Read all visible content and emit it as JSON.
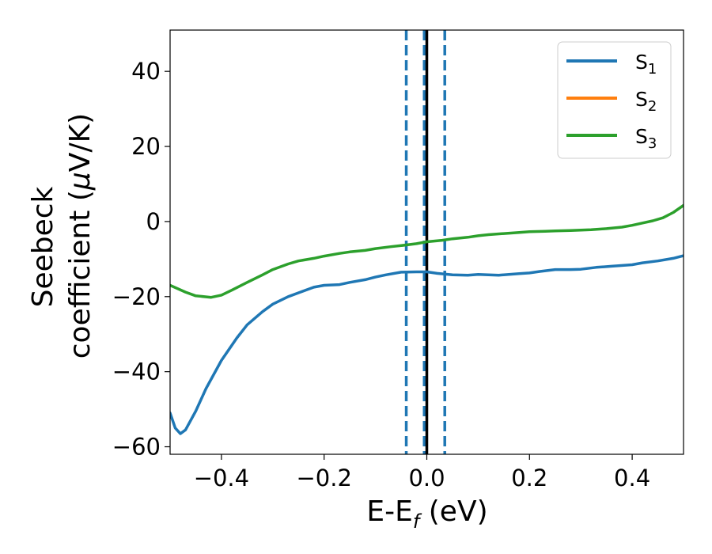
{
  "chart_data": {
    "type": "line",
    "xlabel": {
      "main": "E-E",
      "sub": "f",
      "unit": " (eV)"
    },
    "ylabel": {
      "line1": "Seebeck",
      "line2": "coefficient  (",
      "mu": "μ",
      "unit": "V/K)"
    },
    "xlim": [
      -0.5,
      0.5
    ],
    "ylim": [
      -62,
      51
    ],
    "xticks": [
      -0.4,
      -0.2,
      0.0,
      0.2,
      0.4
    ],
    "xtick_labels": [
      "−0.4",
      "−0.2",
      "0.0",
      "0.2",
      "0.4"
    ],
    "yticks": [
      -60,
      -40,
      -20,
      0,
      20,
      40
    ],
    "ytick_labels": [
      "−60",
      "−40",
      "−20",
      "0",
      "20",
      "40"
    ],
    "grid": false,
    "legend": "top-right",
    "vlines": [
      {
        "x": -0.04,
        "style": "dashed",
        "color": "#1f77b4"
      },
      {
        "x": -0.005,
        "style": "dashed",
        "color": "#1f77b4"
      },
      {
        "x": 0.0,
        "style": "solid",
        "color": "#000000"
      },
      {
        "x": 0.035,
        "style": "dashed",
        "color": "#1f77b4"
      }
    ],
    "series": [
      {
        "name": {
          "base": "S",
          "sub": "1"
        },
        "color": "#1f77b4",
        "x": [
          -0.5,
          -0.49,
          -0.48,
          -0.47,
          -0.45,
          -0.43,
          -0.4,
          -0.37,
          -0.35,
          -0.32,
          -0.3,
          -0.27,
          -0.25,
          -0.22,
          -0.2,
          -0.17,
          -0.15,
          -0.12,
          -0.1,
          -0.08,
          -0.05,
          -0.02,
          0.0,
          0.02,
          0.05,
          0.08,
          0.1,
          0.14,
          0.18,
          0.2,
          0.22,
          0.25,
          0.28,
          0.3,
          0.33,
          0.36,
          0.4,
          0.42,
          0.45,
          0.48,
          0.5
        ],
        "values": [
          -51,
          -55,
          -56.5,
          -55.5,
          -50.5,
          -44.5,
          -37,
          -31,
          -27.5,
          -24,
          -22,
          -20,
          -19,
          -17.5,
          -17,
          -16.8,
          -16.2,
          -15.5,
          -14.8,
          -14.2,
          -13.5,
          -13.4,
          -13.4,
          -13.8,
          -14.2,
          -14.3,
          -14.1,
          -14.3,
          -13.9,
          -13.7,
          -13.3,
          -12.8,
          -12.8,
          -12.7,
          -12.2,
          -11.9,
          -11.5,
          -11,
          -10.5,
          -9.8,
          -9.1
        ]
      },
      {
        "name": {
          "base": "S",
          "sub": "2"
        },
        "color": "#ff7f0e",
        "x": [],
        "values": []
      },
      {
        "name": {
          "base": "S",
          "sub": "3"
        },
        "color": "#2ca02c",
        "x": [
          -0.5,
          -0.47,
          -0.45,
          -0.42,
          -0.4,
          -0.38,
          -0.35,
          -0.32,
          -0.3,
          -0.27,
          -0.25,
          -0.22,
          -0.2,
          -0.17,
          -0.15,
          -0.12,
          -0.1,
          -0.07,
          -0.05,
          -0.02,
          0.0,
          0.03,
          0.05,
          0.08,
          0.1,
          0.12,
          0.15,
          0.18,
          0.2,
          0.23,
          0.25,
          0.28,
          0.3,
          0.32,
          0.35,
          0.38,
          0.4,
          0.42,
          0.44,
          0.46,
          0.48,
          0.5
        ],
        "values": [
          -17,
          -18.8,
          -19.8,
          -20.2,
          -19.6,
          -18.3,
          -16.2,
          -14.2,
          -12.8,
          -11.3,
          -10.5,
          -9.8,
          -9.2,
          -8.5,
          -8.1,
          -7.7,
          -7.2,
          -6.7,
          -6.4,
          -5.9,
          -5.4,
          -5.0,
          -4.6,
          -4.2,
          -3.8,
          -3.5,
          -3.2,
          -2.9,
          -2.7,
          -2.6,
          -2.5,
          -2.4,
          -2.3,
          -2.2,
          -1.9,
          -1.5,
          -1.0,
          -0.4,
          0.2,
          1.0,
          2.4,
          4.3
        ]
      }
    ]
  }
}
